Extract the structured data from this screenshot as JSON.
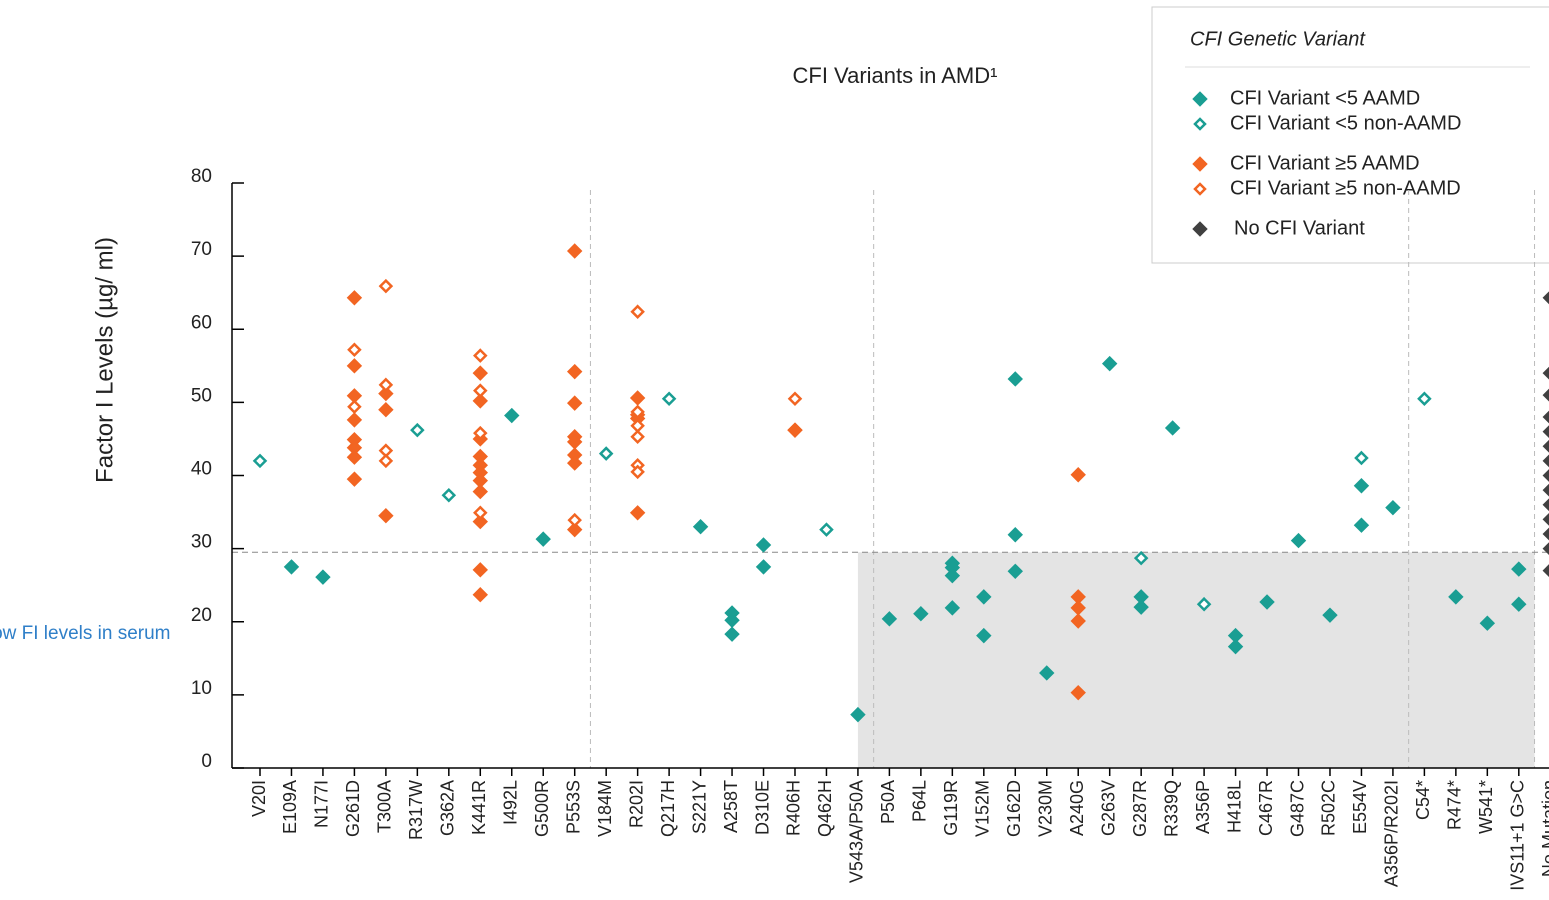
{
  "chart_data": {
    "type": "scatter",
    "title": "CFI Variants in AMD¹",
    "y_label": "Factor I Levels (µg/ ml)",
    "annotation": "Low FI levels in serum",
    "legend_title": "CFI Genetic Variant",
    "legend_position": "upper right",
    "ylim": [
      0,
      80
    ],
    "yticks": [
      0,
      10,
      20,
      30,
      40,
      50,
      60,
      70,
      80
    ],
    "threshold": 29.5,
    "categories": [
      "V20I",
      "E109A",
      "N177I",
      "G261D",
      "T300A",
      "R317W",
      "G362A",
      "K441R",
      "I492L",
      "G500R",
      "P553S",
      "V184M",
      "R202I",
      "Q217H",
      "S221Y",
      "A258T",
      "D310E",
      "R406H",
      "Q462H",
      "V543A/P50A",
      "P50A",
      "P64L",
      "G119R",
      "V152M",
      "G162D",
      "V230M",
      "A240G",
      "G263V",
      "G287R",
      "R339Q",
      "A356P",
      "H418L",
      "C467R",
      "G487C",
      "R502C",
      "E554V",
      "A356P/R202I",
      "C54*",
      "R474*",
      "W541*",
      "IVS11+1 G>C",
      "No Mutation"
    ],
    "series": [
      {
        "name": "CFI Variant <5 AAMD",
        "color": "#1a9e93",
        "marker": "filled",
        "x": [
          "E109A",
          "N177I",
          "I492L",
          "G500R",
          "S221Y",
          "A258T",
          "A258T",
          "A258T",
          "D310E",
          "D310E",
          "V543A/P50A",
          "P50A",
          "P64L",
          "G119R",
          "G119R",
          "G119R",
          "G119R",
          "V152M",
          "V152M",
          "G162D",
          "G162D",
          "G162D",
          "V230M",
          "G263V",
          "G287R",
          "G287R",
          "R339Q",
          "H418L",
          "H418L",
          "C467R",
          "G487C",
          "R502C",
          "E554V",
          "E554V",
          "A356P/R202I",
          "R474*",
          "W541*",
          "IVS11+1 G>C",
          "IVS11+1 G>C"
        ],
        "values": [
          27.5,
          26.1,
          48.2,
          31.3,
          33.0,
          21.2,
          20.2,
          18.3,
          30.5,
          27.5,
          7.3,
          20.4,
          21.1,
          28.0,
          27.4,
          26.3,
          21.9,
          23.4,
          18.1,
          53.2,
          31.9,
          26.9,
          13.0,
          55.3,
          23.4,
          22.0,
          46.5,
          18.1,
          16.6,
          22.7,
          31.1,
          20.9,
          38.6,
          33.2,
          35.6,
          23.4,
          19.8,
          27.2,
          22.4
        ]
      },
      {
        "name": "CFI Variant <5 non-AAMD",
        "color": "#1a9e93",
        "marker": "open",
        "x": [
          "V20I",
          "R317W",
          "G362A",
          "V184M",
          "Q217H",
          "Q462H",
          "G287R",
          "A356P",
          "E554V",
          "C54*"
        ],
        "values": [
          42.0,
          46.2,
          37.3,
          43.0,
          50.5,
          32.6,
          28.7,
          22.4,
          42.4,
          50.5
        ]
      },
      {
        "name": "CFI Variant ≥5 AAMD",
        "color": "#f26522",
        "marker": "filled",
        "x": [
          "G261D",
          "G261D",
          "G261D",
          "G261D",
          "G261D",
          "G261D",
          "G261D",
          "G261D",
          "T300A",
          "T300A",
          "T300A",
          "K441R",
          "K441R",
          "K441R",
          "K441R",
          "K441R",
          "K441R",
          "K441R",
          "K441R",
          "K441R",
          "K441R",
          "K441R",
          "P553S",
          "P553S",
          "P553S",
          "P553S",
          "P553S",
          "P553S",
          "P553S",
          "P553S",
          "R202I",
          "R202I",
          "R202I",
          "R202I",
          "R406H",
          "R406H",
          "A240G",
          "A240G",
          "A240G",
          "A240G",
          "A240G"
        ],
        "values": [
          64.3,
          55.0,
          50.9,
          47.6,
          44.9,
          43.8,
          42.5,
          39.5,
          51.2,
          49.0,
          34.5,
          54.0,
          50.2,
          45.0,
          42.6,
          41.4,
          40.4,
          39.3,
          37.8,
          33.7,
          27.1,
          23.7,
          70.7,
          54.2,
          49.9,
          45.3,
          44.6,
          42.8,
          41.7,
          32.6,
          50.6,
          48.3,
          47.8,
          34.9,
          46.2,
          46.2,
          40.1,
          23.4,
          21.9,
          20.1,
          10.3
        ]
      },
      {
        "name": "CFI Variant ≥5 non-AAMD",
        "color": "#f26522",
        "marker": "open",
        "x": [
          "G261D",
          "G261D",
          "T300A",
          "T300A",
          "T300A",
          "T300A",
          "K441R",
          "K441R",
          "K441R",
          "K441R",
          "P553S",
          "R202I",
          "R202I",
          "R202I",
          "R202I",
          "R202I",
          "R202I",
          "R406H"
        ],
        "values": [
          57.2,
          49.4,
          65.9,
          52.4,
          43.4,
          42.0,
          56.4,
          51.6,
          45.8,
          34.9,
          33.9,
          62.4,
          48.7,
          46.8,
          45.3,
          41.4,
          40.5,
          50.5
        ]
      },
      {
        "name": "No CFI Variant",
        "color": "#404040",
        "marker": "filled",
        "x": [
          "No Mutation",
          "No Mutation",
          "No Mutation",
          "No Mutation",
          "No Mutation",
          "No Mutation",
          "No Mutation",
          "No Mutation",
          "No Mutation",
          "No Mutation",
          "No Mutation",
          "No Mutation",
          "No Mutation",
          "No Mutation"
        ],
        "values": [
          64.3,
          54.0,
          51.0,
          48.0,
          46.0,
          44.0,
          42.0,
          40.0,
          38.0,
          36.0,
          34.0,
          32.0,
          30.0,
          27.0
        ]
      }
    ]
  }
}
